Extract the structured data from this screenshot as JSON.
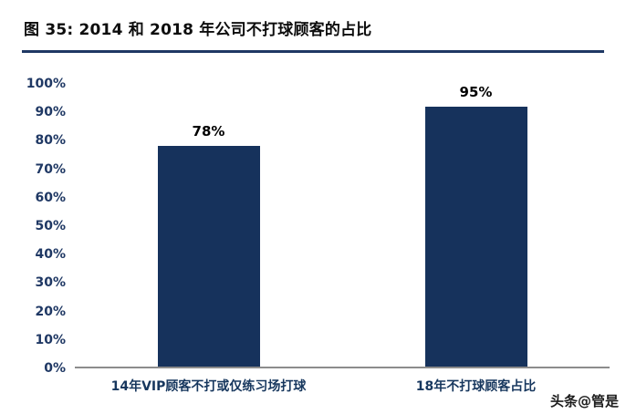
{
  "header": {
    "title": "图 35:  2014 和 2018 年公司不打球顾客的占比"
  },
  "chart_data": {
    "type": "bar",
    "title": "图 35:  2014 和 2018 年公司不打球顾客的占比",
    "categories": [
      "14年VIP顾客不打或仅练习场打球",
      "18年不打球顾客占比"
    ],
    "values": [
      78,
      95
    ],
    "value_labels": [
      "78%",
      "95%"
    ],
    "xlabel": "",
    "ylabel": "",
    "ylim": [
      0,
      100
    ],
    "yticks": [
      "0%",
      "10%",
      "20%",
      "30%",
      "40%",
      "50%",
      "60%",
      "70%",
      "80%",
      "90%",
      "100%"
    ],
    "grid": false,
    "legend": "none",
    "bar_color": "#16325c",
    "accent_color": "#1f3864",
    "baseline_color": "#8c8c8c"
  },
  "watermark": {
    "text": "头条@管是"
  }
}
